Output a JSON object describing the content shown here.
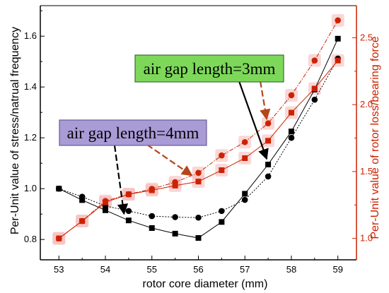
{
  "chart_data": {
    "type": "line",
    "xlabel": "rotor core diameter (mm)",
    "ylabel_left": "Per-Unit value of stress/natrual frequency",
    "ylabel_right": "Per-Unit value of rotor loss/bearing force",
    "xlim": [
      52.6,
      59.4
    ],
    "ylim_left": [
      0.72,
      1.72
    ],
    "ylim_right": [
      0.84,
      2.74
    ],
    "xticks": [
      "53",
      "54",
      "55",
      "56",
      "57",
      "58",
      "59"
    ],
    "yticks_left": [
      "0.8",
      "1.0",
      "1.2",
      "1.4",
      "1.6"
    ],
    "yticks_right": [
      "1.0",
      "1.5",
      "2.0",
      "2.5"
    ],
    "grid": false,
    "series": [
      {
        "axis": "left",
        "marker": "square",
        "dash": "solid",
        "color": "#000000",
        "x": [
          53,
          53.5,
          54,
          54.5,
          55,
          55.5,
          56,
          56.5,
          57,
          57.5,
          58,
          58.5,
          59
        ],
        "values": [
          1.0,
          0.955,
          0.915,
          0.875,
          0.845,
          0.823,
          0.806,
          0.869,
          0.98,
          1.095,
          1.225,
          1.39,
          1.59
        ]
      },
      {
        "axis": "left",
        "marker": "circle",
        "dash": "dotted",
        "color": "#000000",
        "x": [
          53,
          53.5,
          54,
          54.5,
          55,
          55.5,
          56,
          56.5,
          57,
          57.5,
          58,
          58.5,
          59
        ],
        "values": [
          1.0,
          0.968,
          0.932,
          0.912,
          0.892,
          0.888,
          0.886,
          0.912,
          0.956,
          1.048,
          1.2,
          1.35,
          1.512
        ]
      },
      {
        "axis": "right",
        "marker": "square",
        "dash": "solid",
        "color": "#cc2200",
        "x": [
          53,
          53.5,
          54,
          54.5,
          55,
          55.5,
          56,
          56.5,
          57,
          57.5,
          58,
          58.5,
          59
        ],
        "values": [
          1.0,
          1.13,
          1.27,
          1.33,
          1.36,
          1.395,
          1.425,
          1.51,
          1.6,
          1.73,
          1.94,
          2.12,
          2.33
        ]
      },
      {
        "axis": "right",
        "marker": "circle",
        "dash": "dashdot",
        "color": "#cc2200",
        "x": [
          53,
          53.5,
          54,
          54.5,
          55,
          55.5,
          56,
          56.5,
          57,
          57.5,
          58,
          58.5,
          59
        ],
        "values": [
          1.0,
          1.13,
          1.28,
          1.33,
          1.37,
          1.42,
          1.49,
          1.62,
          1.72,
          1.86,
          2.07,
          2.33,
          2.63
        ]
      }
    ],
    "annotations": [
      {
        "text": "air gap length=3mm",
        "bg": "#7dd85a",
        "border": "#3a6e2c"
      },
      {
        "text": "air gap length=4mm",
        "bg": "#a99bd6",
        "border": "#6a5e94"
      }
    ],
    "colors": {
      "left_axis": "#000000",
      "right_axis": "#cc2200",
      "marker_glow": "#f6b6b6"
    }
  }
}
